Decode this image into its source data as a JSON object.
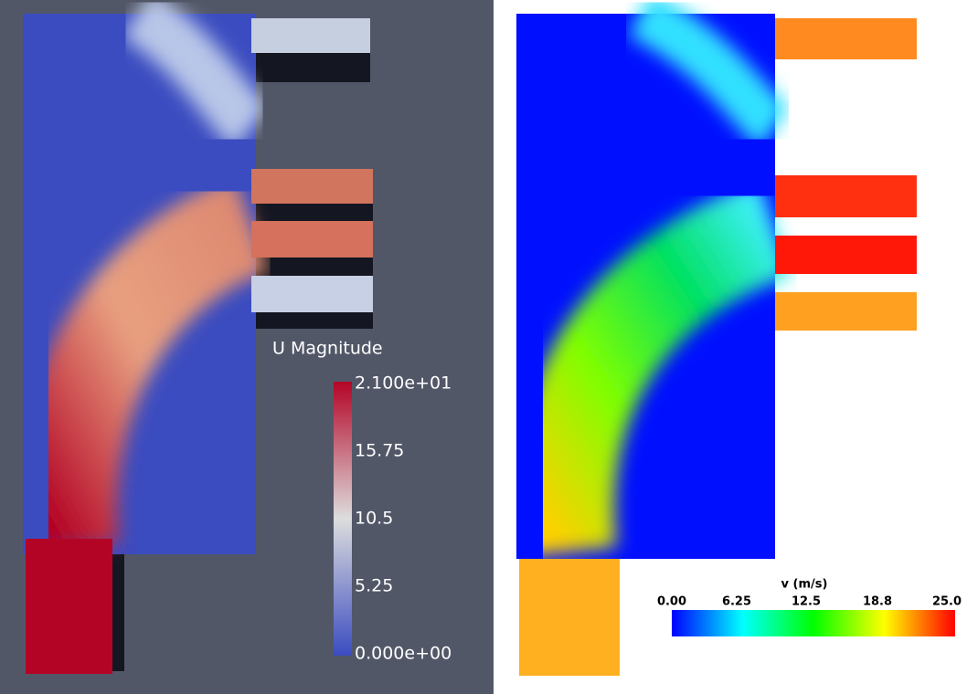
{
  "left_panel": {
    "legend": {
      "title": "U Magnitude",
      "tick_labels": [
        "2.100e+01",
        "15.75",
        "10.5",
        "5.25",
        "0.000e+00"
      ]
    }
  },
  "right_panel": {
    "legend": {
      "title": "v (m/s)",
      "tick_labels": [
        "0.00",
        "6.25",
        "12.5",
        "18.8",
        "25.0"
      ]
    }
  }
}
